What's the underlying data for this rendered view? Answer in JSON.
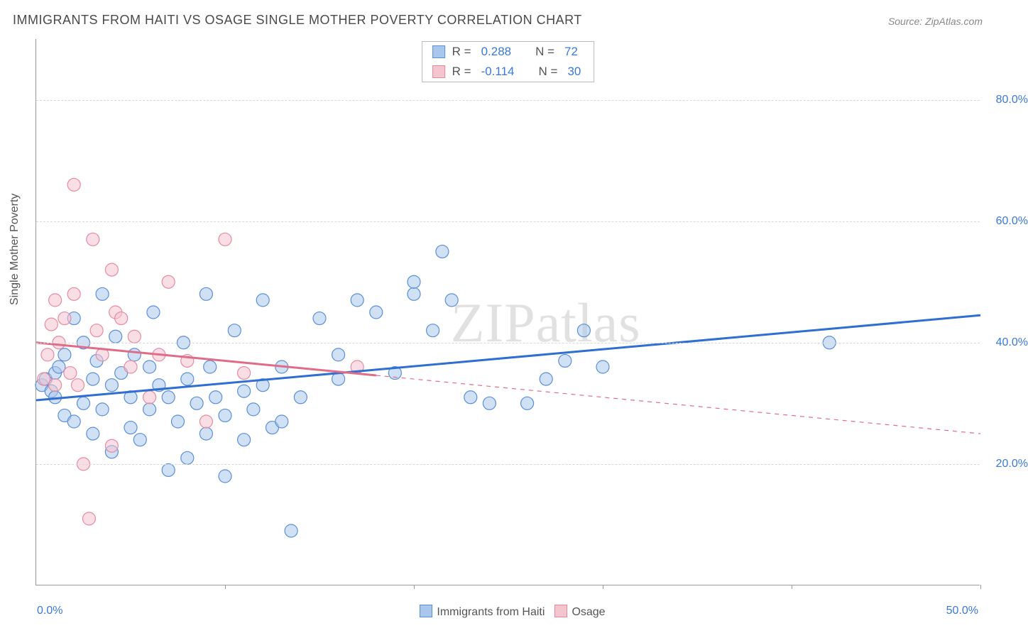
{
  "title": "IMMIGRANTS FROM HAITI VS OSAGE SINGLE MOTHER POVERTY CORRELATION CHART",
  "source_label": "Source: ZipAtlas.com",
  "watermark": "ZIPatlas",
  "ylabel": "Single Mother Poverty",
  "chart": {
    "type": "scatter",
    "xlim": [
      0,
      50
    ],
    "ylim": [
      0,
      90
    ],
    "y_ticks": [
      20,
      40,
      60,
      80
    ],
    "y_tick_labels": [
      "20.0%",
      "40.0%",
      "60.0%",
      "80.0%"
    ],
    "x_ticks": [
      0,
      10,
      20,
      30,
      40,
      50
    ],
    "x_axis_labels": {
      "left": "0.0%",
      "right": "50.0%"
    },
    "grid_color": "#d8d8d8",
    "axis_color": "#999999",
    "background": "#ffffff",
    "marker_radius": 9,
    "marker_opacity": 0.55,
    "line_width": 3,
    "series": [
      {
        "key": "haiti",
        "label": "Immigrants from Haiti",
        "fill": "#a9c7ec",
        "stroke": "#5b8fd6",
        "line_color": "#2f6fd0",
        "R": "0.288",
        "N": "72",
        "trend": {
          "x1": 0,
          "y1": 30.5,
          "x2": 50,
          "y2": 44.5,
          "dashed_after_x": null
        },
        "points": [
          [
            0.3,
            33
          ],
          [
            0.5,
            34
          ],
          [
            0.8,
            32
          ],
          [
            1,
            35
          ],
          [
            1,
            31
          ],
          [
            1.2,
            36
          ],
          [
            1.5,
            38
          ],
          [
            1.5,
            28
          ],
          [
            2,
            44
          ],
          [
            2,
            27
          ],
          [
            2.5,
            30
          ],
          [
            2.5,
            40
          ],
          [
            3,
            25
          ],
          [
            3,
            34
          ],
          [
            3.2,
            37
          ],
          [
            3.5,
            48
          ],
          [
            3.5,
            29
          ],
          [
            4,
            33
          ],
          [
            4,
            22
          ],
          [
            4.2,
            41
          ],
          [
            4.5,
            35
          ],
          [
            5,
            26
          ],
          [
            5,
            31
          ],
          [
            5.2,
            38
          ],
          [
            5.5,
            24
          ],
          [
            6,
            36
          ],
          [
            6,
            29
          ],
          [
            6.2,
            45
          ],
          [
            6.5,
            33
          ],
          [
            7,
            19
          ],
          [
            7,
            31
          ],
          [
            7.5,
            27
          ],
          [
            7.8,
            40
          ],
          [
            8,
            21
          ],
          [
            8,
            34
          ],
          [
            8.5,
            30
          ],
          [
            9,
            25
          ],
          [
            9,
            48
          ],
          [
            9.2,
            36
          ],
          [
            9.5,
            31
          ],
          [
            10,
            28
          ],
          [
            10,
            18
          ],
          [
            10.5,
            42
          ],
          [
            11,
            24
          ],
          [
            11,
            32
          ],
          [
            11.5,
            29
          ],
          [
            12,
            47
          ],
          [
            12,
            33
          ],
          [
            12.5,
            26
          ],
          [
            13,
            36
          ],
          [
            13.5,
            9
          ],
          [
            14,
            31
          ],
          [
            15,
            44
          ],
          [
            16,
            38
          ],
          [
            16,
            34
          ],
          [
            17,
            47
          ],
          [
            18,
            45
          ],
          [
            19,
            35
          ],
          [
            20,
            48
          ],
          [
            20,
            50
          ],
          [
            21,
            42
          ],
          [
            21.5,
            55
          ],
          [
            22,
            47
          ],
          [
            23,
            31
          ],
          [
            24,
            30
          ],
          [
            26,
            30
          ],
          [
            27,
            34
          ],
          [
            28,
            37
          ],
          [
            29,
            42
          ],
          [
            30,
            36
          ],
          [
            42,
            40
          ],
          [
            13,
            27
          ]
        ]
      },
      {
        "key": "osage",
        "label": "Osage",
        "fill": "#f4c4cf",
        "stroke": "#e68aa0",
        "line_color": "#e06d88",
        "R": "-0.114",
        "N": "30",
        "trend": {
          "x1": 0,
          "y1": 40,
          "x2": 50,
          "y2": 25,
          "dashed_after_x": 18
        },
        "points": [
          [
            0.4,
            34
          ],
          [
            0.6,
            38
          ],
          [
            0.8,
            43
          ],
          [
            1,
            33
          ],
          [
            1,
            47
          ],
          [
            1.2,
            40
          ],
          [
            1.5,
            44
          ],
          [
            1.8,
            35
          ],
          [
            2,
            48
          ],
          [
            2,
            66
          ],
          [
            2.2,
            33
          ],
          [
            2.5,
            20
          ],
          [
            2.8,
            11
          ],
          [
            3,
            57
          ],
          [
            3.2,
            42
          ],
          [
            3.5,
            38
          ],
          [
            4,
            23
          ],
          [
            4,
            52
          ],
          [
            4.2,
            45
          ],
          [
            4.5,
            44
          ],
          [
            5,
            36
          ],
          [
            5.2,
            41
          ],
          [
            6,
            31
          ],
          [
            6.5,
            38
          ],
          [
            7,
            50
          ],
          [
            8,
            37
          ],
          [
            9,
            27
          ],
          [
            10,
            57
          ],
          [
            11,
            35
          ],
          [
            17,
            36
          ]
        ]
      }
    ]
  },
  "stats_legend": {
    "rows": [
      {
        "swatch_fill": "#a9c7ec",
        "swatch_stroke": "#5b8fd6",
        "r_label": "R =",
        "r_val": "0.288",
        "n_label": "N =",
        "n_val": "72"
      },
      {
        "swatch_fill": "#f4c4cf",
        "swatch_stroke": "#e68aa0",
        "r_label": "R =",
        "r_val": "-0.114",
        "n_label": "N =",
        "n_val": "30"
      }
    ]
  },
  "bottom_legend": [
    {
      "swatch_fill": "#a9c7ec",
      "swatch_stroke": "#5b8fd6",
      "label": "Immigrants from Haiti"
    },
    {
      "swatch_fill": "#f4c4cf",
      "swatch_stroke": "#e68aa0",
      "label": "Osage"
    }
  ]
}
